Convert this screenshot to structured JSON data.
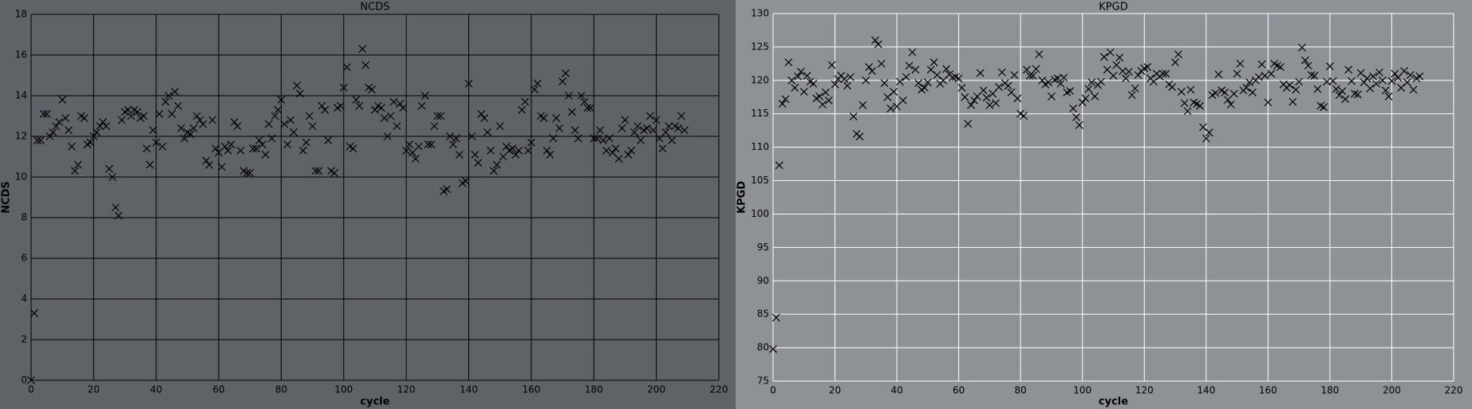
{
  "chart_data": [
    {
      "type": "scatter",
      "title": "NCDS",
      "x_label": "cycle",
      "y_label": "NCDS",
      "color": "#000000",
      "grid": true,
      "grid_color": "#000000",
      "background": "#5f6368",
      "xlim": [
        0,
        220
      ],
      "ylim": [
        0,
        18
      ],
      "xticks": [
        0,
        20,
        40,
        60,
        80,
        100,
        120,
        140,
        160,
        180,
        200,
        220
      ],
      "yticks": [
        0,
        2,
        4,
        6,
        8,
        10,
        12,
        14,
        16,
        18
      ],
      "x": [
        0,
        1,
        2,
        3,
        4,
        5,
        6,
        7,
        8,
        9,
        10,
        11,
        12,
        13,
        14,
        15,
        16,
        17,
        18,
        19,
        20,
        21,
        22,
        23,
        24,
        25,
        26,
        27,
        28,
        29,
        30,
        31,
        32,
        33,
        34,
        35,
        36,
        37,
        38,
        39,
        40,
        41,
        42,
        43,
        44,
        45,
        46,
        47,
        48,
        49,
        50,
        51,
        52,
        53,
        54,
        55,
        56,
        57,
        58,
        59,
        60,
        61,
        62,
        63,
        64,
        65,
        66,
        67,
        68,
        69,
        70,
        71,
        72,
        73,
        74,
        75,
        76,
        77,
        78,
        79,
        80,
        81,
        82,
        83,
        84,
        85,
        86,
        87,
        88,
        89,
        90,
        91,
        92,
        93,
        94,
        95,
        96,
        97,
        98,
        99,
        100,
        101,
        102,
        103,
        104,
        105,
        106,
        107,
        108,
        109,
        110,
        111,
        112,
        113,
        114,
        115,
        116,
        117,
        118,
        119,
        120,
        121,
        122,
        123,
        124,
        125,
        126,
        127,
        128,
        129,
        130,
        131,
        132,
        133,
        134,
        135,
        136,
        137,
        138,
        139,
        140,
        141,
        142,
        143,
        144,
        145,
        146,
        147,
        148,
        149,
        150,
        151,
        152,
        153,
        154,
        155,
        156,
        157,
        158,
        159,
        160,
        161,
        162,
        163,
        164,
        165,
        166,
        167,
        168,
        169,
        170,
        171,
        172,
        173,
        174,
        175,
        176,
        177,
        178,
        179,
        180,
        181,
        182,
        183,
        184,
        185,
        186,
        187,
        188,
        189,
        190,
        191,
        192,
        193,
        194,
        195,
        196,
        197,
        198,
        199,
        200,
        201,
        202,
        203,
        204,
        205,
        206,
        207,
        208,
        209
      ],
      "values": [
        0,
        3.3,
        11.8,
        11.8,
        13.1,
        13.1,
        12.0,
        12.2,
        12.5,
        12.7,
        13.8,
        12.9,
        12.3,
        11.5,
        10.3,
        10.6,
        13.0,
        12.9,
        11.6,
        11.7,
        12.0,
        12.2,
        12.5,
        12.7,
        12.5,
        10.4,
        10.0,
        8.5,
        8.1,
        12.8,
        13.2,
        13.3,
        13.0,
        13.3,
        13.2,
        12.9,
        13.0,
        11.4,
        10.6,
        12.3,
        11.7,
        13.1,
        11.5,
        13.7,
        14.0,
        13.1,
        14.2,
        13.5,
        12.4,
        11.9,
        12.2,
        12.1,
        12.4,
        13.0,
        12.8,
        12.6,
        10.8,
        10.6,
        12.8,
        11.4,
        11.2,
        10.5,
        11.5,
        11.3,
        11.6,
        12.7,
        12.5,
        11.3,
        10.3,
        10.2,
        10.2,
        11.4,
        11.4,
        11.8,
        11.6,
        11.1,
        12.6,
        11.9,
        13.0,
        13.3,
        13.8,
        12.6,
        11.6,
        12.8,
        12.2,
        14.5,
        14.1,
        11.3,
        11.7,
        13.0,
        12.5,
        10.3,
        10.3,
        13.5,
        13.3,
        11.8,
        10.3,
        10.2,
        13.4,
        13.5,
        14.4,
        15.4,
        11.5,
        11.4,
        13.8,
        13.5,
        16.3,
        15.5,
        14.4,
        14.3,
        13.3,
        13.5,
        13.4,
        12.9,
        12.0,
        13.0,
        13.7,
        12.5,
        13.6,
        13.4,
        11.3,
        11.6,
        11.2,
        10.9,
        11.5,
        13.5,
        14.0,
        11.6,
        11.6,
        12.5,
        13.0,
        13.0,
        9.3,
        9.4,
        12.0,
        11.6,
        11.9,
        11.1,
        9.7,
        9.8,
        14.6,
        12.0,
        11.1,
        10.7,
        13.1,
        12.9,
        12.2,
        11.3,
        10.3,
        10.6,
        12.5,
        11.0,
        11.5,
        11.3,
        11.4,
        11.1,
        11.3,
        13.3,
        13.7,
        11.3,
        11.7,
        14.3,
        14.6,
        13.0,
        12.9,
        11.3,
        11.1,
        11.9,
        12.9,
        12.4,
        14.7,
        15.1,
        14.0,
        13.2,
        12.3,
        11.9,
        14.0,
        13.7,
        13.4,
        13.4,
        11.9,
        11.9,
        12.3,
        11.8,
        11.3,
        11.9,
        11.2,
        11.4,
        10.9,
        12.4,
        12.8,
        11.1,
        11.3,
        12.2,
        12.5,
        11.8,
        12.3,
        12.4,
        13.0,
        12.3,
        12.8,
        11.9,
        11.4,
        12.2,
        12.5,
        11.8,
        12.5,
        12.4,
        13.0,
        12.3
      ]
    },
    {
      "type": "scatter",
      "title": "KPGD",
      "x_label": "cycle",
      "y_label": "KPGD",
      "color": "#000000",
      "grid": true,
      "grid_color": "#ffffff",
      "background": "#8e9296",
      "xlim": [
        0,
        220
      ],
      "ylim": [
        75,
        130
      ],
      "xticks": [
        0,
        20,
        40,
        60,
        80,
        100,
        120,
        140,
        160,
        180,
        200,
        220
      ],
      "yticks": [
        75,
        80,
        85,
        90,
        95,
        100,
        105,
        110,
        115,
        120,
        125,
        130
      ],
      "x": [
        0,
        1,
        2,
        3,
        4,
        5,
        6,
        7,
        8,
        9,
        10,
        11,
        12,
        13,
        14,
        15,
        16,
        17,
        18,
        19,
        20,
        21,
        22,
        23,
        24,
        25,
        26,
        27,
        28,
        29,
        30,
        31,
        32,
        33,
        34,
        35,
        36,
        37,
        38,
        39,
        40,
        41,
        42,
        43,
        44,
        45,
        46,
        47,
        48,
        49,
        50,
        51,
        52,
        53,
        54,
        55,
        56,
        57,
        58,
        59,
        60,
        61,
        62,
        63,
        64,
        65,
        66,
        67,
        68,
        69,
        70,
        71,
        72,
        73,
        74,
        75,
        76,
        77,
        78,
        79,
        80,
        81,
        82,
        83,
        84,
        85,
        86,
        87,
        88,
        89,
        90,
        91,
        92,
        93,
        94,
        95,
        96,
        97,
        98,
        99,
        100,
        101,
        102,
        103,
        104,
        105,
        106,
        107,
        108,
        109,
        110,
        111,
        112,
        113,
        114,
        115,
        116,
        117,
        118,
        119,
        120,
        121,
        122,
        123,
        124,
        125,
        126,
        127,
        128,
        129,
        130,
        131,
        132,
        133,
        134,
        135,
        136,
        137,
        138,
        139,
        140,
        141,
        142,
        143,
        144,
        145,
        146,
        147,
        148,
        149,
        150,
        151,
        152,
        153,
        154,
        155,
        156,
        157,
        158,
        159,
        160,
        161,
        162,
        163,
        164,
        165,
        166,
        167,
        168,
        169,
        170,
        171,
        172,
        173,
        174,
        175,
        176,
        177,
        178,
        179,
        180,
        181,
        182,
        183,
        184,
        185,
        186,
        187,
        188,
        189,
        190,
        191,
        192,
        193,
        194,
        195,
        196,
        197,
        198,
        199,
        200,
        201,
        202,
        203,
        204,
        205,
        206,
        207,
        208,
        209
      ],
      "values": [
        79.8,
        84.5,
        107.3,
        116.5,
        117.2,
        122.7,
        120.0,
        118.9,
        120.6,
        121.3,
        118.3,
        120.7,
        119.8,
        119.5,
        117.3,
        117.6,
        116.4,
        118.2,
        117.0,
        122.3,
        119.4,
        120.2,
        120.7,
        120.2,
        119.2,
        120.5,
        114.6,
        112.0,
        111.6,
        116.3,
        120.0,
        122.0,
        121.4,
        126.0,
        125.4,
        122.5,
        119.6,
        117.5,
        115.8,
        118.3,
        116.1,
        119.8,
        117.0,
        120.5,
        122.2,
        124.2,
        121.6,
        119.6,
        118.6,
        118.9,
        119.7,
        121.6,
        122.7,
        120.8,
        119.5,
        120.0,
        121.7,
        120.9,
        120.4,
        120.5,
        120.3,
        118.9,
        117.5,
        113.5,
        116.3,
        117.0,
        117.6,
        121.1,
        118.5,
        117.4,
        116.3,
        118.0,
        116.6,
        119.0,
        121.2,
        119.6,
        119.2,
        118.2,
        120.8,
        117.3,
        115.0,
        114.7,
        121.6,
        120.7,
        120.7,
        121.7,
        123.9,
        120.0,
        119.4,
        119.7,
        117.6,
        120.1,
        120.3,
        119.5,
        120.4,
        118.2,
        118.4,
        115.8,
        114.5,
        113.3,
        116.7,
        117.3,
        118.7,
        119.7,
        117.6,
        119.3,
        119.8,
        123.5,
        121.6,
        124.2,
        120.7,
        122.3,
        123.4,
        121.4,
        120.3,
        121.3,
        117.8,
        118.8,
        120.8,
        121.4,
        121.8,
        122.0,
        120.3,
        119.8,
        121.0,
        120.6,
        121.0,
        121.0,
        119.4,
        119.0,
        122.7,
        123.9,
        118.3,
        116.6,
        115.4,
        118.6,
        116.7,
        116.5,
        116.2,
        113.0,
        111.3,
        112.2,
        117.8,
        118.1,
        120.9,
        118.5,
        118.2,
        117.1,
        116.4,
        118.0,
        121.0,
        122.5,
        118.5,
        118.9,
        119.7,
        118.2,
        120.0,
        120.5,
        122.4,
        120.7,
        116.7,
        121.0,
        122.5,
        122.2,
        122.0,
        119.4,
        118.9,
        119.3,
        116.8,
        118.6,
        119.8,
        124.9,
        123.0,
        122.2,
        120.8,
        120.7,
        118.7,
        116.2,
        116.0,
        119.8,
        122.1,
        119.9,
        118.7,
        117.8,
        118.4,
        117.2,
        121.6,
        119.9,
        118.0,
        117.9,
        121.1,
        119.7,
        120.3,
        118.8,
        120.6,
        119.5,
        121.2,
        120.0,
        118.5,
        117.6,
        119.9,
        121.0,
        120.4,
        118.9,
        121.4,
        119.7,
        120.8,
        118.6,
        120.3,
        120.6
      ]
    }
  ]
}
